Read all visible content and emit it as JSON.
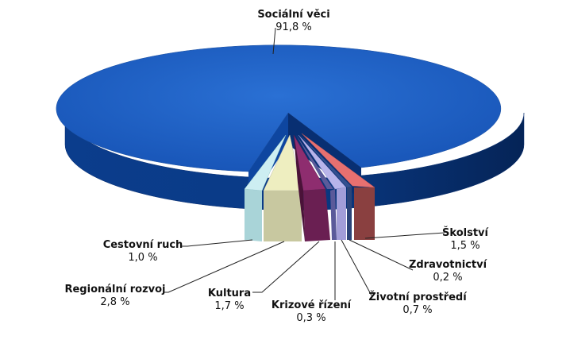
{
  "chart_data": {
    "type": "pie",
    "title": "",
    "categories": [
      "Sociální věci",
      "Školství",
      "Zdravotnictví",
      "Životní prostředí",
      "Krizové řízení",
      "Kultura",
      "Regionální rozvoj",
      "Cestovní ruch"
    ],
    "values": [
      91.8,
      1.5,
      0.2,
      0.7,
      0.3,
      1.7,
      2.8,
      1.0
    ],
    "value_labels": [
      "91,8 %",
      "1,5 %",
      "0,2 %",
      "0,7 %",
      "0,3 %",
      "1,7 %",
      "2,8 %",
      "1,0 %"
    ],
    "colors": [
      "#1a5fc0",
      "#e07070",
      "#3a5aa0",
      "#a9a4e0",
      "#8b2a6e",
      "#e8e8b0",
      "#ccecf0",
      "#ccecf0"
    ],
    "style": "3d-exploded",
    "legend": "none"
  }
}
